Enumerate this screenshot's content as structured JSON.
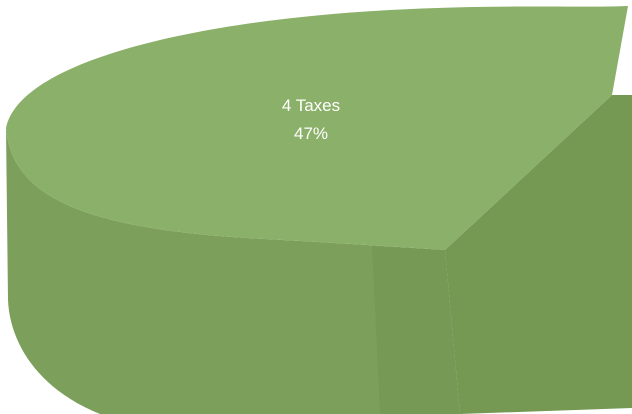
{
  "chart_data": {
    "type": "pie",
    "style": "3d",
    "slices": [
      {
        "name": "4 Taxes",
        "value": 47,
        "value_label": "47%",
        "color_top": "#8bb069",
        "color_side": "#6f8f4f",
        "color_front": "#789a57"
      }
    ]
  }
}
